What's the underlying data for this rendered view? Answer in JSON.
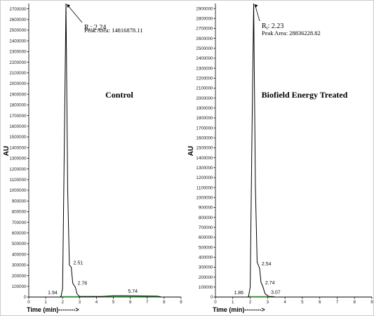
{
  "chart_data": [
    {
      "type": "line",
      "title": "Control",
      "xlabel": "Time (min)-------->",
      "ylabel": "AU",
      "xlim": [
        0,
        9
      ],
      "ylim": [
        0,
        2750000
      ],
      "x_ticks": [
        0,
        1,
        2,
        3,
        4,
        5,
        6,
        7,
        8,
        9
      ],
      "y_ticks": [
        0,
        100000,
        200000,
        300000,
        400000,
        500000,
        600000,
        700000,
        800000,
        900000,
        1000000,
        1100000,
        1200000,
        1300000,
        1400000,
        1500000,
        1600000,
        1700000,
        1800000,
        1900000,
        2000000,
        2100000,
        2200000,
        2300000,
        2400000,
        2500000,
        2600000,
        2700000
      ],
      "annotation": {
        "rt_prefix": "R",
        "rt_sub": "t",
        "rt_value": ": 2.24",
        "peak_area": "Peak Area: 14816878.11"
      },
      "peak_labels": [
        {
          "label": "1.94",
          "x": 1.94,
          "y": 0
        },
        {
          "label": "2.51",
          "x": 2.51,
          "y": 280000
        },
        {
          "label": "2.76",
          "x": 2.76,
          "y": 90000
        },
        {
          "label": "5.74",
          "x": 5.74,
          "y": 12000
        }
      ],
      "series": [
        {
          "values": [
            [
              0,
              0
            ],
            [
              1.9,
              0
            ],
            [
              2.0,
              80000
            ],
            [
              2.1,
              1400000
            ],
            [
              2.2,
              2750000
            ],
            [
              2.3,
              1000000
            ],
            [
              2.4,
              300000
            ],
            [
              2.51,
              280000
            ],
            [
              2.6,
              130000
            ],
            [
              2.76,
              90000
            ],
            [
              2.85,
              30000
            ],
            [
              3.0,
              5000
            ],
            [
              4.3,
              5000
            ],
            [
              5.0,
              12000
            ],
            [
              5.74,
              12000
            ],
            [
              7.6,
              8000
            ],
            [
              7.8,
              0
            ],
            [
              9,
              0
            ]
          ]
        }
      ]
    },
    {
      "type": "line",
      "title": "Biofield Energy Treated",
      "xlabel": "Time (min)-------->",
      "ylabel": "AU",
      "xlim": [
        0,
        9
      ],
      "ylim": [
        0,
        2950000
      ],
      "x_ticks": [
        0,
        1,
        2,
        3,
        4,
        5,
        6,
        7,
        8,
        9
      ],
      "y_ticks": [
        0,
        100000,
        200000,
        300000,
        400000,
        500000,
        600000,
        700000,
        800000,
        900000,
        1000000,
        1100000,
        1200000,
        1300000,
        1400000,
        1500000,
        1600000,
        1700000,
        1800000,
        1900000,
        2000000,
        2100000,
        2200000,
        2300000,
        2400000,
        2500000,
        2600000,
        2700000,
        2800000,
        2900000
      ],
      "annotation": {
        "rt_prefix": "R",
        "rt_sub": "t",
        "rt_value": ": 2.23",
        "peak_area": "Peak Area: 28836228.82"
      },
      "peak_labels": [
        {
          "label": "1.86",
          "x": 1.86,
          "y": 0
        },
        {
          "label": "2.54",
          "x": 2.54,
          "y": 290000
        },
        {
          "label": "2.74",
          "x": 2.74,
          "y": 100000
        },
        {
          "label": "3.07",
          "x": 3.07,
          "y": 5000
        }
      ],
      "series": [
        {
          "values": [
            [
              0,
              0
            ],
            [
              1.9,
              0
            ],
            [
              2.0,
              100000
            ],
            [
              2.1,
              1600000
            ],
            [
              2.2,
              2950000
            ],
            [
              2.3,
              1100000
            ],
            [
              2.4,
              350000
            ],
            [
              2.54,
              290000
            ],
            [
              2.62,
              150000
            ],
            [
              2.74,
              100000
            ],
            [
              2.85,
              35000
            ],
            [
              3.07,
              5000
            ],
            [
              3.4,
              0
            ],
            [
              9,
              0
            ]
          ]
        }
      ]
    }
  ]
}
